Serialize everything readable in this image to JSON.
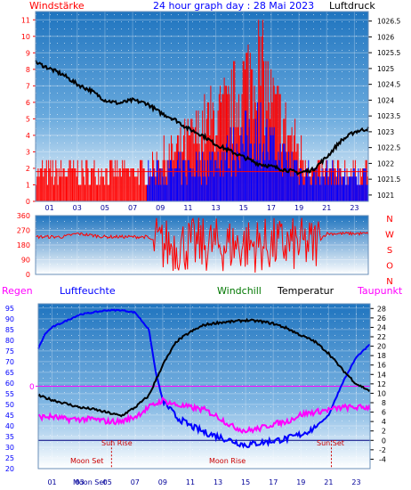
{
  "header": {
    "left_label": "Windstärke",
    "title": "24 hour graph day : 28 Mai 2023",
    "right_label": "Luftdruck"
  },
  "lower_header": {
    "regen": "Regen",
    "luftfeuchte": "Luftfeuchte",
    "windchill": "Windchill",
    "temperatur": "Temperatur",
    "taupunkt": "Taupunkt"
  },
  "colors": {
    "wind": "#ff0000",
    "gust": "#0000ff",
    "pressure": "#000000",
    "humidity": "#0000ff",
    "temperature": "#000000",
    "dewpoint": "#ff00ff",
    "rain_line": "#ff00ff",
    "axis_red": "#ff0000",
    "axis_blue": "#0000ff",
    "sun_label": "#cc0000"
  },
  "annotations": {
    "sun_rise": "Sun Rise",
    "sun_set": "Sun Set",
    "moon_set": "Moon Set",
    "moon_rise": "Moon Rise",
    "rain_zero": "0"
  },
  "chart_data": [
    {
      "type": "bar",
      "name": "wind",
      "title": "24 hour graph day : 28 Mai 2023",
      "x_ticks": [
        "01",
        "03",
        "05",
        "07",
        "09",
        "11",
        "13",
        "15",
        "17",
        "19",
        "21",
        "23"
      ],
      "x_unit": "hour",
      "xlim": [
        0,
        24
      ],
      "left_axis": {
        "label": "Windstärke",
        "ticks": [
          0,
          1,
          2,
          3,
          4,
          5,
          6,
          7,
          8,
          9,
          10,
          11
        ],
        "ylim": [
          0,
          11.5
        ]
      },
      "right_axis": {
        "label": "Luftdruck",
        "ticks": [
          "1021",
          "1021.5",
          "1022",
          "1022.5",
          "1023",
          "1023.5",
          "1024",
          "1024.5",
          "1025",
          "1025.5",
          "1026",
          "1026.5"
        ],
        "ylim": [
          1020.8,
          1026.8
        ]
      },
      "wind_profile": [
        [
          0,
          1.8
        ],
        [
          8,
          1.8
        ],
        [
          9,
          2.5
        ],
        [
          11,
          3.5
        ],
        [
          12,
          4.5
        ],
        [
          14,
          5.5
        ],
        [
          15,
          7
        ],
        [
          16,
          8.5
        ],
        [
          17,
          6
        ],
        [
          18,
          4.5
        ],
        [
          19,
          3
        ],
        [
          20,
          1.8
        ],
        [
          24,
          1.8
        ]
      ],
      "gust_profile": [
        [
          0,
          1.8
        ],
        [
          9,
          2
        ],
        [
          11,
          2.5
        ],
        [
          13,
          3
        ],
        [
          15,
          4.5
        ],
        [
          16,
          5.5
        ],
        [
          17,
          4
        ],
        [
          18,
          3
        ],
        [
          20,
          2
        ],
        [
          24,
          1.8
        ]
      ],
      "pressure": [
        [
          0,
          1025.2
        ],
        [
          1,
          1025.0
        ],
        [
          2,
          1024.8
        ],
        [
          3,
          1024.5
        ],
        [
          4,
          1024.3
        ],
        [
          5,
          1024.0
        ],
        [
          6,
          1023.9
        ],
        [
          7,
          1024.0
        ],
        [
          8,
          1023.9
        ],
        [
          9,
          1023.6
        ],
        [
          10,
          1023.4
        ],
        [
          11,
          1023.1
        ],
        [
          12,
          1022.9
        ],
        [
          13,
          1022.6
        ],
        [
          14,
          1022.4
        ],
        [
          15,
          1022.2
        ],
        [
          16,
          1022.0
        ],
        [
          17,
          1021.9
        ],
        [
          18,
          1021.8
        ],
        [
          19,
          1021.7
        ],
        [
          20,
          1021.8
        ],
        [
          21,
          1022.2
        ],
        [
          22,
          1022.7
        ],
        [
          23,
          1023.0
        ],
        [
          24,
          1023.1
        ]
      ]
    },
    {
      "type": "scatter",
      "name": "wind_direction",
      "x_ticks": [
        "01",
        "03",
        "05",
        "07",
        "09",
        "11",
        "13",
        "15",
        "17",
        "19",
        "21",
        "23"
      ],
      "xlim": [
        0,
        24
      ],
      "left_axis": {
        "ticks": [
          0,
          90,
          180,
          270,
          360
        ],
        "ylim": [
          0,
          360
        ]
      },
      "right_axis": {
        "ticks": [
          "N",
          "W",
          "S",
          "O",
          "N"
        ]
      },
      "direction_profile": [
        [
          0,
          230
        ],
        [
          2,
          230
        ],
        [
          3,
          250
        ],
        [
          5,
          230
        ],
        [
          8,
          230
        ],
        [
          9,
          180
        ],
        [
          20,
          180
        ],
        [
          21,
          250
        ],
        [
          24,
          250
        ]
      ]
    },
    {
      "type": "line",
      "name": "climate",
      "x_ticks": [
        "01",
        "03",
        "05",
        "07",
        "09",
        "11",
        "13",
        "15",
        "17",
        "19",
        "21",
        "23"
      ],
      "xlim": [
        0,
        24
      ],
      "left_axis": {
        "label": "Luftfeuchte",
        "ticks": [
          20,
          25,
          30,
          35,
          40,
          45,
          50,
          55,
          60,
          65,
          70,
          75,
          80,
          85,
          90,
          95
        ],
        "ylim": [
          20,
          97
        ]
      },
      "right_axis": {
        "label": "Temperatur",
        "ticks": [
          -4,
          -2,
          0,
          2,
          4,
          6,
          8,
          10,
          12,
          14,
          16,
          18,
          20,
          22,
          24,
          26,
          28
        ],
        "ylim": [
          -6,
          29
        ]
      },
      "series": [
        {
          "name": "Luftfeuchte",
          "values": [
            [
              0,
              76
            ],
            [
              0.5,
              83
            ],
            [
              1,
              86
            ],
            [
              2,
              89
            ],
            [
              3,
              92
            ],
            [
              4,
              93
            ],
            [
              5,
              94
            ],
            [
              6,
              94
            ],
            [
              7,
              93
            ],
            [
              8,
              85
            ],
            [
              8.5,
              65
            ],
            [
              9,
              52
            ],
            [
              10,
              44
            ],
            [
              11,
              40
            ],
            [
              12,
              37
            ],
            [
              13,
              35
            ],
            [
              14,
              33
            ],
            [
              15,
              31
            ],
            [
              16,
              32
            ],
            [
              17,
              33
            ],
            [
              18,
              34
            ],
            [
              19,
              36
            ],
            [
              20,
              39
            ],
            [
              21,
              45
            ],
            [
              22,
              60
            ],
            [
              23,
              72
            ],
            [
              24,
              78
            ]
          ]
        },
        {
          "name": "Temperatur",
          "values": [
            [
              0,
              9.5
            ],
            [
              1,
              8.6
            ],
            [
              2,
              7.8
            ],
            [
              3,
              7
            ],
            [
              4,
              6.6
            ],
            [
              5,
              5.9
            ],
            [
              6,
              5.2
            ],
            [
              7,
              7
            ],
            [
              8,
              9.5
            ],
            [
              9,
              16
            ],
            [
              10,
              21
            ],
            [
              11,
              23
            ],
            [
              12,
              24.5
            ],
            [
              13,
              25
            ],
            [
              14,
              25.2
            ],
            [
              15,
              25.5
            ],
            [
              16,
              25.3
            ],
            [
              17,
              24.8
            ],
            [
              18,
              23.8
            ],
            [
              19,
              22.3
            ],
            [
              20,
              21
            ],
            [
              21,
              18.5
            ],
            [
              22,
              15
            ],
            [
              23,
              12
            ],
            [
              24,
              10.5
            ]
          ]
        },
        {
          "name": "Taupunkt",
          "values": [
            [
              0,
              5
            ],
            [
              1,
              5
            ],
            [
              2,
              4.5
            ],
            [
              3,
              4.5
            ],
            [
              4,
              4.5
            ],
            [
              5,
              4
            ],
            [
              6,
              4
            ],
            [
              7,
              5
            ],
            [
              8,
              7
            ],
            [
              9,
              8.5
            ],
            [
              10,
              7.5
            ],
            [
              11,
              7
            ],
            [
              12,
              6.5
            ],
            [
              13,
              5
            ],
            [
              14,
              3
            ],
            [
              15,
              2
            ],
            [
              16,
              2.5
            ],
            [
              17,
              3.5
            ],
            [
              18,
              4
            ],
            [
              19,
              5.5
            ],
            [
              20,
              6
            ],
            [
              21,
              6.5
            ],
            [
              22,
              7
            ],
            [
              23,
              7
            ],
            [
              24,
              7
            ]
          ]
        }
      ]
    }
  ]
}
